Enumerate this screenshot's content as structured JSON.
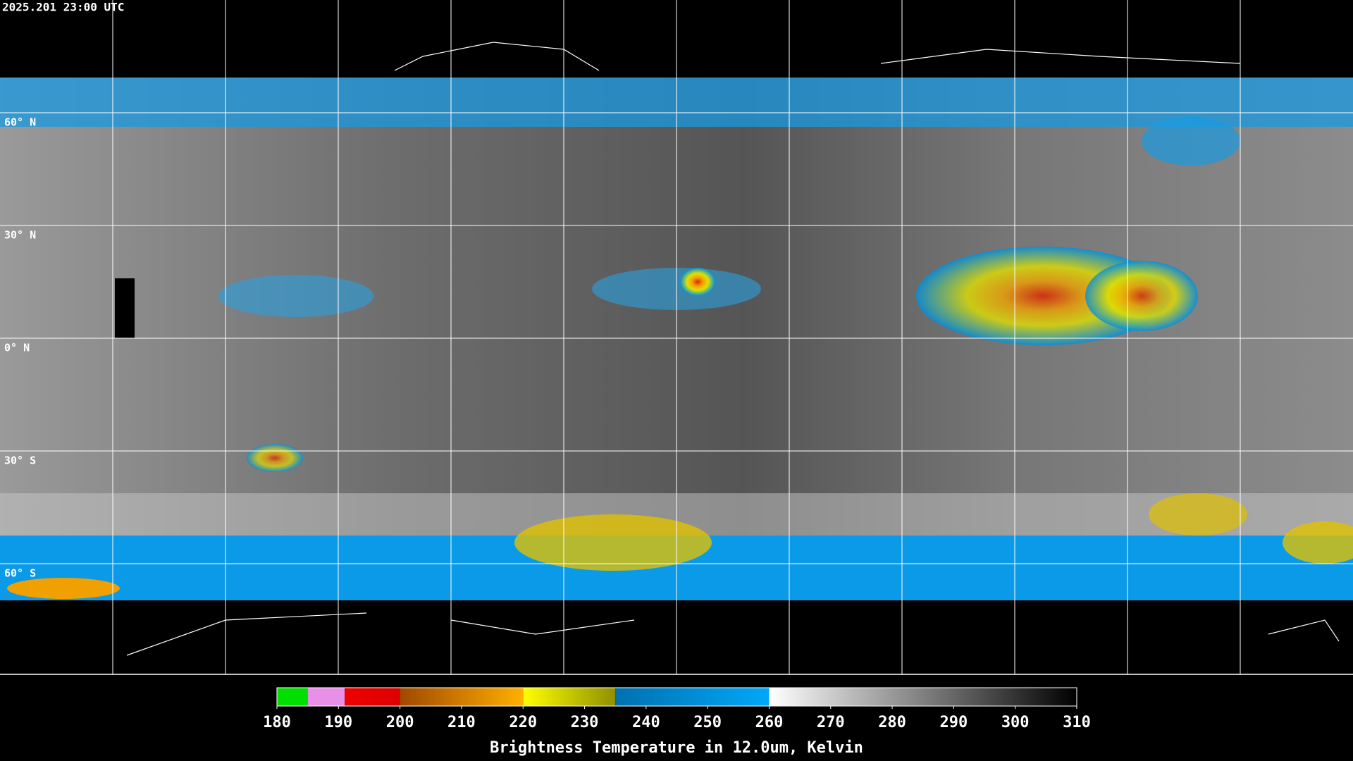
{
  "header": {
    "title": "2025.201 23:00 UTC"
  },
  "map": {
    "lat_labels": [
      "60° N",
      "30° N",
      "0° N",
      "30° S",
      "60° S"
    ]
  },
  "colorbar": {
    "lim": [
      180,
      310
    ],
    "ticks": [
      180,
      190,
      200,
      210,
      220,
      230,
      240,
      250,
      260,
      270,
      280,
      290,
      300,
      310
    ],
    "stops": [
      {
        "from": 180,
        "to": 185,
        "colors": [
          "#00e000",
          "#00e000"
        ]
      },
      {
        "from": 185,
        "to": 191,
        "colors": [
          "#e890e8",
          "#e890e8"
        ]
      },
      {
        "from": 191,
        "to": 200,
        "colors": [
          "#ee0000",
          "#dd0000"
        ]
      },
      {
        "from": 200,
        "to": 220,
        "colors": [
          "#a04800",
          "#ffb000"
        ]
      },
      {
        "from": 220,
        "to": 235,
        "colors": [
          "#ffff00",
          "#909000"
        ]
      },
      {
        "from": 235,
        "to": 260,
        "colors": [
          "#0070b0",
          "#00a8f8"
        ]
      },
      {
        "from": 260,
        "to": 310,
        "colors": [
          "#ffffff",
          "#000000"
        ]
      }
    ],
    "label": "Brightness Temperature in 12.0um, Kelvin"
  }
}
